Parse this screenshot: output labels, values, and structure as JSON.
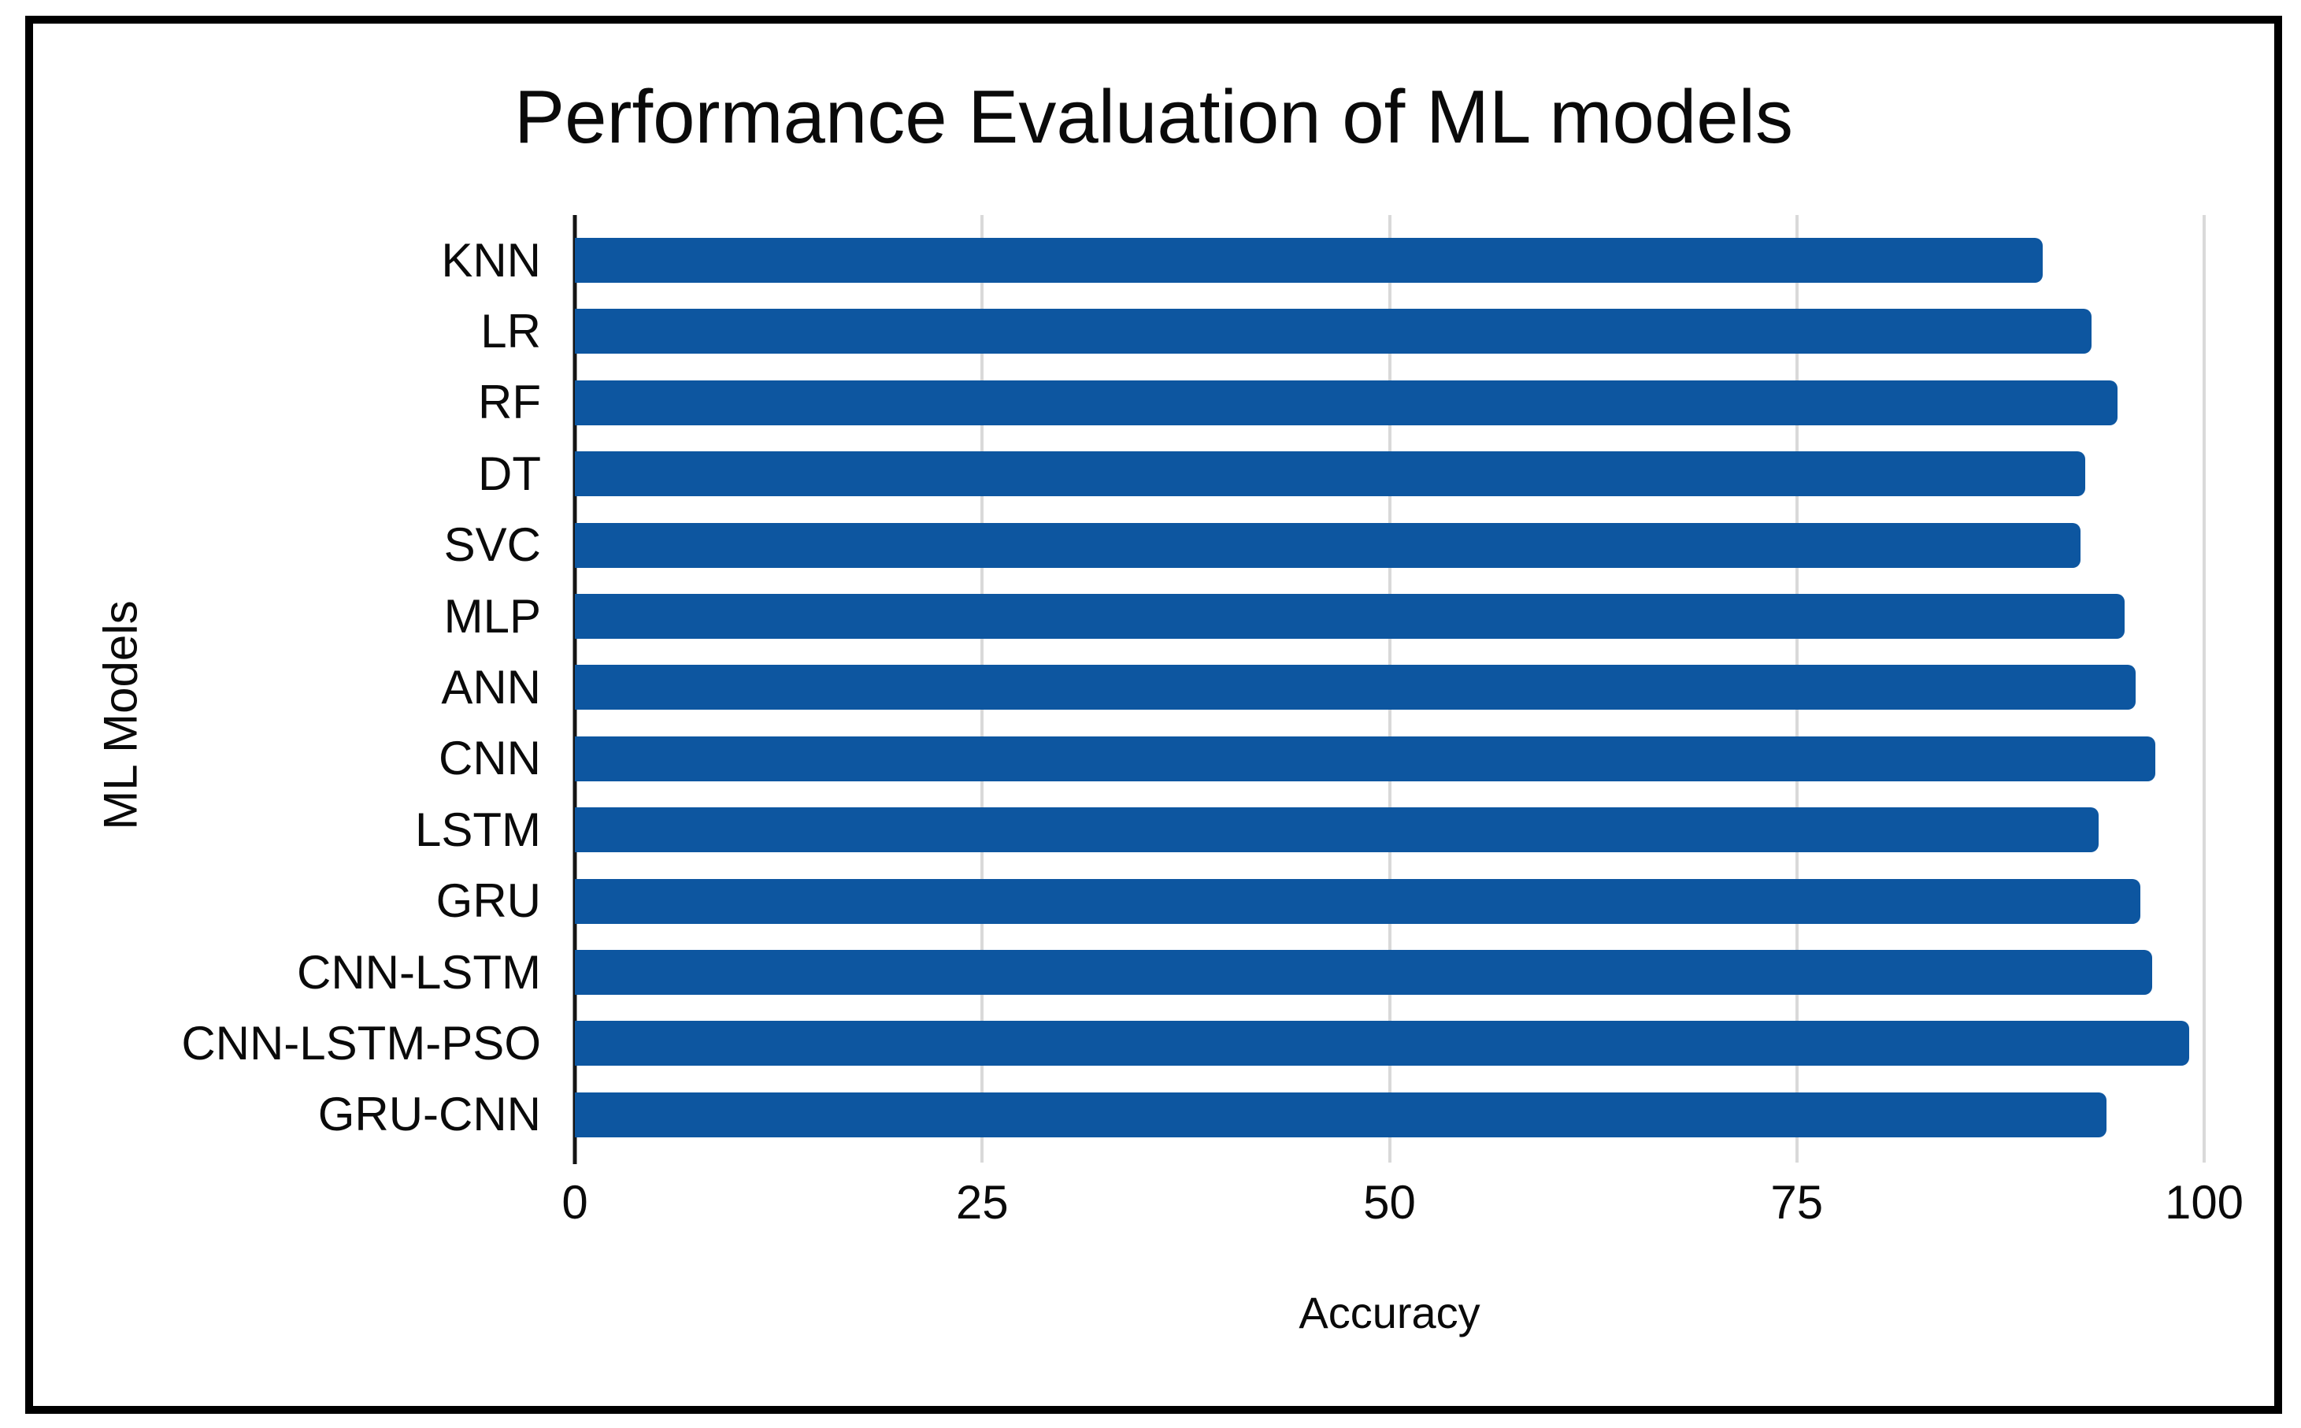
{
  "chart_data": {
    "type": "bar",
    "orientation": "horizontal",
    "title": "Performance Evaluation of ML models",
    "xlabel": "Accuracy",
    "ylabel": "ML Models",
    "categories": [
      "KNN",
      "LR",
      "RF",
      "DT",
      "SVC",
      "MLP",
      "ANN",
      "CNN",
      "LSTM",
      "GRU",
      "CNN-LSTM",
      "CNN-LSTM-PSO",
      "GRU-CNN"
    ],
    "values": [
      90.1,
      93.1,
      94.7,
      92.7,
      92.4,
      95.1,
      95.8,
      97.0,
      93.5,
      96.1,
      96.8,
      99.1,
      94.0
    ],
    "xlim": [
      0,
      100
    ],
    "xticks": [
      0,
      25,
      50,
      75,
      100
    ],
    "grid": true,
    "legend": false,
    "bar_color": "#0d56a0",
    "gridline_color": "#d9d9d9",
    "axis_color": "#141414",
    "frame_border_color": "#000000",
    "background_color": "#ffffff"
  }
}
